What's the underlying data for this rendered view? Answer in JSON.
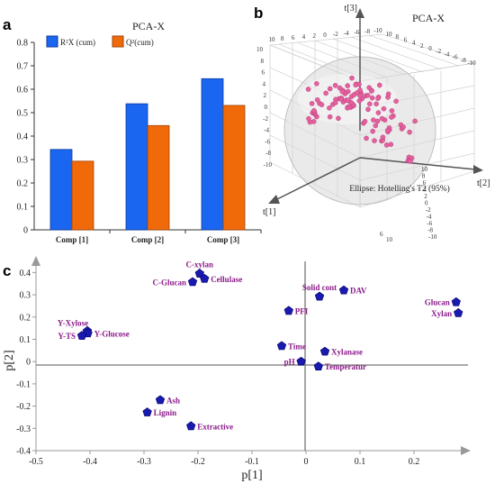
{
  "panels": {
    "a": "a",
    "b": "b",
    "c": "c"
  },
  "chart_data": [
    {
      "type": "bar",
      "title": "PCA-X",
      "categories": [
        "Comp [1]",
        "Comp [2]",
        "Comp [3]"
      ],
      "series": [
        {
          "name": "R²X (cum)",
          "color": "#1a66f0",
          "values": [
            0.343,
            0.538,
            0.645
          ]
        },
        {
          "name": "Q²(cum)",
          "color": "#f06a0a",
          "values": [
            0.293,
            0.445,
            0.531
          ]
        }
      ],
      "ylim": [
        0,
        0.8
      ],
      "yticks": [
        "0",
        "0.1",
        "0.2",
        "0.3",
        "0.4",
        "0.5",
        "0.6",
        "0.7",
        "0.8"
      ],
      "legend": "top-left",
      "grid": false
    },
    {
      "type": "scatter",
      "title": "PCA-X",
      "axes": [
        "t[1]",
        "t[2]",
        "t[3]"
      ],
      "ellipse_label": "Ellipse: Hotelling's T2 (95%)",
      "point_color": "#e4609e",
      "ticks_3d": [
        "10",
        "8",
        "6",
        "4",
        "2",
        "0",
        "-2",
        "-4",
        "-6",
        "-8",
        "-10"
      ],
      "bottom_ticks": [
        "6",
        "10"
      ]
    },
    {
      "type": "scatter",
      "xlabel": "p[1]",
      "ylabel": "p[2]",
      "xlim": [
        -0.5,
        0.3
      ],
      "ylim": [
        -0.4,
        0.45
      ],
      "xticks": [
        "-0.5",
        "-0.4",
        "-0.3",
        "-0.2",
        "-0.1",
        "0",
        "0.1",
        "0.2"
      ],
      "yticks": [
        "-0.4",
        "-0.3",
        "-0.2",
        "-0.1",
        "0",
        "0.1",
        "0.2",
        "0.3",
        "0.4"
      ],
      "marker_color": "#1a1ab0",
      "points": [
        {
          "label": "C-xylan",
          "x": -0.197,
          "y": 0.395
        },
        {
          "label": "Cellulase",
          "x": -0.188,
          "y": 0.372
        },
        {
          "label": "C-Glucan",
          "x": -0.21,
          "y": 0.357
        },
        {
          "label": "Y-Xylose",
          "x": -0.405,
          "y": 0.137
        },
        {
          "label": "Y-Glucose",
          "x": -0.404,
          "y": 0.127
        },
        {
          "label": "Y-TS",
          "x": -0.415,
          "y": 0.116
        },
        {
          "label": "Ash",
          "x": -0.27,
          "y": -0.173
        },
        {
          "label": "Lignin",
          "x": -0.294,
          "y": -0.228
        },
        {
          "label": "Extractive",
          "x": -0.213,
          "y": -0.29
        },
        {
          "label": "Solid cont",
          "x": 0.025,
          "y": 0.292
        },
        {
          "label": "DAV",
          "x": 0.07,
          "y": 0.32
        },
        {
          "label": "PFI",
          "x": -0.032,
          "y": 0.228
        },
        {
          "label": "Time",
          "x": -0.045,
          "y": 0.07
        },
        {
          "label": "Xylanase",
          "x": 0.035,
          "y": 0.045
        },
        {
          "label": "pH",
          "x": -0.009,
          "y": 0.0
        },
        {
          "label": "Temperatur",
          "x": 0.023,
          "y": -0.022
        },
        {
          "label": "Glucan",
          "x": 0.278,
          "y": 0.267
        },
        {
          "label": "Xylan",
          "x": 0.282,
          "y": 0.218
        }
      ]
    }
  ]
}
